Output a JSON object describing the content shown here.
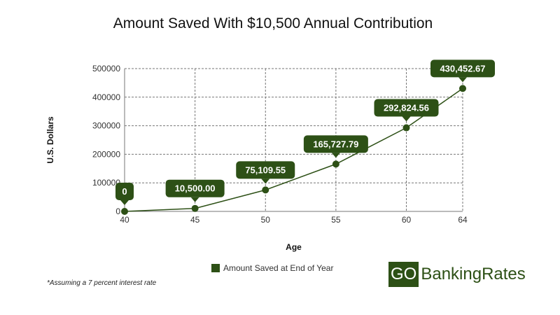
{
  "chart_data": {
    "type": "line",
    "title": "Amount Saved With $10,500 Annual Contribution",
    "xlabel": "Age",
    "ylabel": "U.S. Dollars",
    "x": [
      40,
      45,
      50,
      55,
      60,
      64
    ],
    "x_is_numeric": true,
    "series": [
      {
        "name": "Amount Saved at End of Year",
        "values": [
          0,
          10500.0,
          75109.55,
          165727.79,
          292824.56,
          430452.67
        ],
        "data_labels": [
          "0",
          "10,500.00",
          "75,109.55",
          "165,727.79",
          "292,824.56",
          "430,452.67"
        ]
      }
    ],
    "yticks": [
      0,
      100000,
      200000,
      300000,
      400000,
      500000
    ],
    "ytick_labels": [
      "0",
      "100000",
      "200000",
      "300000",
      "400000",
      "500000"
    ],
    "xticks": [
      40,
      45,
      50,
      55,
      60,
      64
    ],
    "xtick_labels": [
      "40",
      "45",
      "50",
      "55",
      "60",
      "64"
    ],
    "xlim": [
      40,
      64
    ],
    "ylim": [
      0,
      500000
    ],
    "grid": true,
    "legend_position": "bottom-center"
  },
  "colors": {
    "series": "#2d5016",
    "grid": "#777777",
    "brand_green": "#2d5016",
    "label_text": "#ffffff"
  },
  "footnote": "*Assuming a 7 percent interest rate",
  "brand": {
    "part1": "GO",
    "part2": "BankingRates"
  }
}
